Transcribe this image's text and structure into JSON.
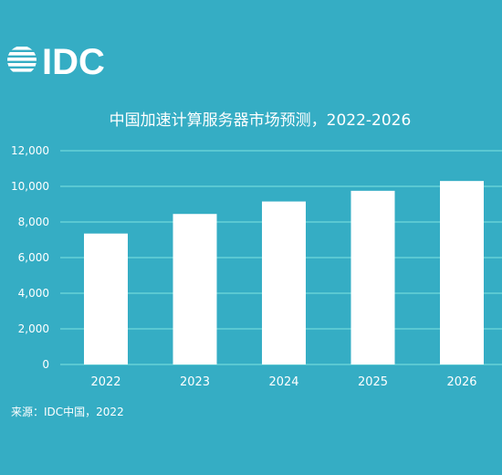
{
  "brand": {
    "logo_text": "IDC"
  },
  "source_note": "来源：IDC中国，2022",
  "colors": {
    "background": "#35adc4",
    "bar": "#ffffff",
    "grid": "#7fe3df",
    "text": "#ffffff"
  },
  "chart_data": {
    "type": "bar",
    "title": "中国加速计算服务器市场预测，2022-2026",
    "xlabel": "",
    "ylabel": "",
    "categories": [
      "2022",
      "2023",
      "2024",
      "2025",
      "2026"
    ],
    "values": [
      7350,
      8450,
      9150,
      9750,
      10300
    ],
    "ylim": [
      0,
      12000
    ],
    "yticks": [
      0,
      2000,
      4000,
      6000,
      8000,
      10000,
      12000
    ],
    "ytick_labels": [
      "0",
      "2,000",
      "4,000",
      "6,000",
      "8,000",
      "10,000",
      "12,000"
    ],
    "grid": true,
    "legend": "none"
  }
}
